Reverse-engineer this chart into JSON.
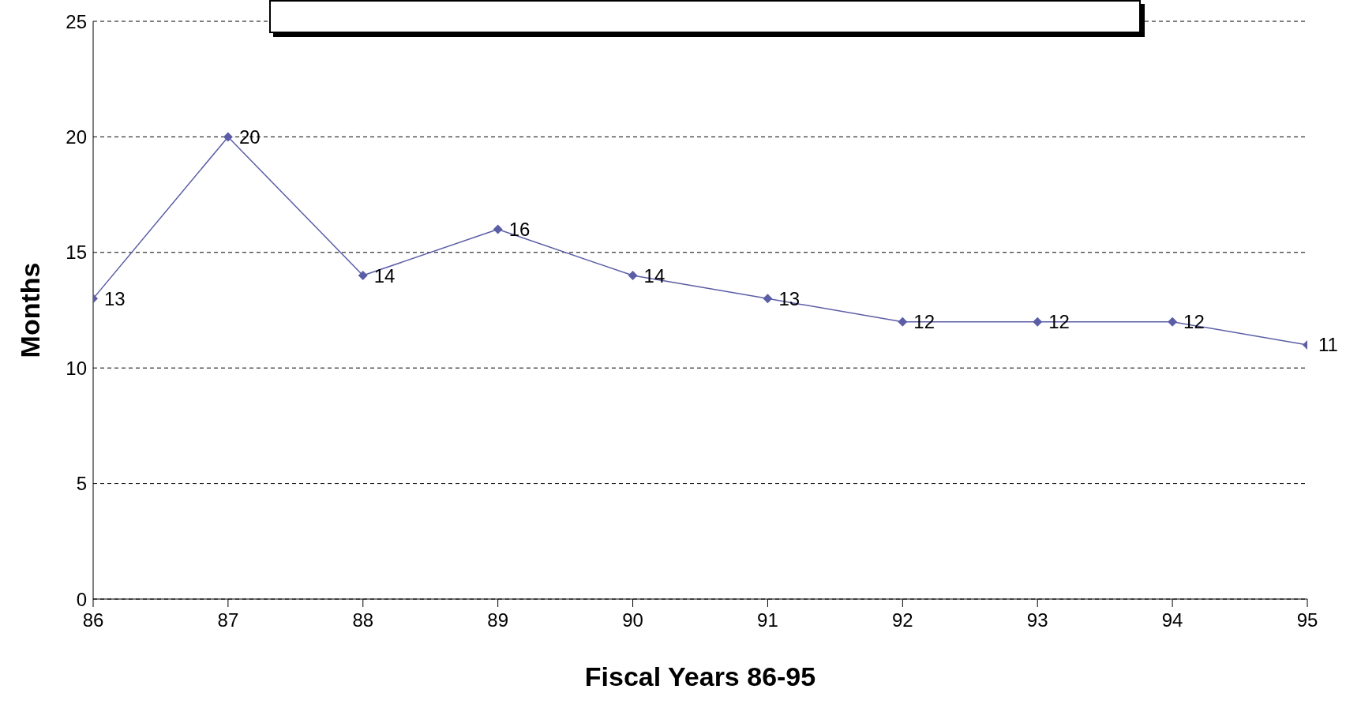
{
  "chart_data": {
    "type": "line",
    "xlabel": "Fiscal Years 86-95",
    "ylabel": "Months",
    "categories": [
      "86",
      "87",
      "88",
      "89",
      "90",
      "91",
      "92",
      "93",
      "94",
      "95"
    ],
    "series": [
      {
        "color": "#5b5ea6",
        "values": [
          13,
          20,
          14,
          16,
          14,
          13,
          12,
          12,
          12,
          11
        ]
      }
    ],
    "ylim": [
      0,
      25
    ],
    "yticks": [
      0,
      5,
      10,
      15,
      20,
      25
    ],
    "grid": "y",
    "marker": "diamond",
    "line_style": "solid",
    "data_labels": true,
    "legend": false
  }
}
